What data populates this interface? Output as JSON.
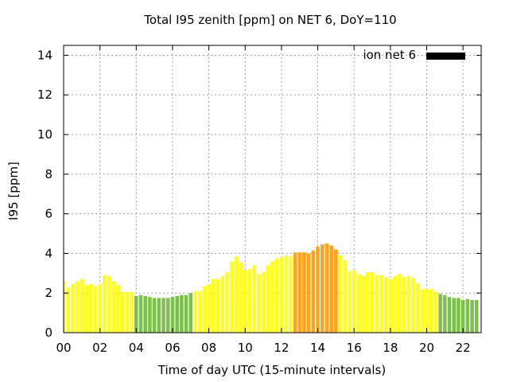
{
  "chart_data": {
    "type": "bar",
    "title": "Total I95 zenith [ppm] on NET 6, DoY=110",
    "xlabel": "Time of day UTC (15-minute intervals)",
    "ylabel": "I95 [ppm]",
    "legend": {
      "label": "ion net 6",
      "color": "#000000",
      "placement": "top-right"
    },
    "x_ticks": [
      "00",
      "02",
      "04",
      "06",
      "08",
      "10",
      "12",
      "14",
      "16",
      "18",
      "20",
      "22"
    ],
    "y_ticks": [
      "0",
      "2",
      "4",
      "6",
      "8",
      "10",
      "12",
      "14"
    ],
    "xlim": [
      0,
      23
    ],
    "ylim": [
      0,
      14.5
    ],
    "grid": true,
    "bar_width_hours": 0.2,
    "colors": {
      "green": "#7cc14a",
      "yellow": "#ffff1a",
      "orange": "#ffa31a"
    },
    "x": [
      0,
      0.25,
      0.5,
      0.75,
      1,
      1.25,
      1.5,
      1.75,
      2,
      2.25,
      2.5,
      2.75,
      3,
      3.25,
      3.5,
      3.75,
      4,
      4.25,
      4.5,
      4.75,
      5,
      5.25,
      5.5,
      5.75,
      6,
      6.25,
      6.5,
      6.75,
      7,
      7.25,
      7.5,
      7.75,
      8,
      8.25,
      8.5,
      8.75,
      9,
      9.25,
      9.5,
      9.75,
      10,
      10.25,
      10.5,
      10.75,
      11,
      11.25,
      11.5,
      11.75,
      12,
      12.25,
      12.5,
      12.75,
      13,
      13.25,
      13.5,
      13.75,
      14,
      14.25,
      14.5,
      14.75,
      15,
      15.25,
      15.5,
      15.75,
      16,
      16.25,
      16.5,
      16.75,
      17,
      17.25,
      17.5,
      17.75,
      18,
      18.25,
      18.5,
      18.75,
      19,
      19.25,
      19.5,
      19.75,
      20,
      20.25,
      20.5,
      20.75,
      21,
      21.25,
      21.5,
      21.75,
      22,
      22.25,
      22.5,
      22.75
    ],
    "values": [
      2.6,
      2.3,
      2.45,
      2.6,
      2.7,
      2.4,
      2.45,
      2.35,
      2.45,
      2.9,
      2.85,
      2.6,
      2.4,
      2.05,
      2.05,
      2.05,
      1.85,
      1.9,
      1.85,
      1.8,
      1.75,
      1.75,
      1.75,
      1.75,
      1.8,
      1.85,
      1.9,
      1.9,
      2.0,
      2.1,
      2.1,
      2.35,
      2.45,
      2.7,
      2.7,
      2.85,
      3.05,
      3.6,
      3.85,
      3.55,
      3.15,
      3.2,
      3.4,
      2.95,
      3.05,
      3.4,
      3.6,
      3.75,
      3.8,
      3.9,
      3.85,
      4.05,
      4.05,
      4.05,
      4.0,
      4.15,
      4.35,
      4.45,
      4.5,
      4.4,
      4.2,
      3.9,
      3.65,
      3.1,
      3.15,
      2.95,
      2.85,
      3.05,
      3.05,
      2.9,
      2.9,
      2.8,
      2.7,
      2.85,
      2.95,
      2.8,
      2.85,
      2.75,
      2.5,
      2.2,
      2.2,
      2.2,
      2.05,
      1.95,
      1.9,
      1.8,
      1.75,
      1.75,
      1.65,
      1.7,
      1.65,
      1.65
    ],
    "bar_colors": [
      "yellow",
      "yellow",
      "yellow",
      "yellow",
      "yellow",
      "yellow",
      "yellow",
      "yellow",
      "yellow",
      "yellow",
      "yellow",
      "yellow",
      "yellow",
      "yellow",
      "yellow",
      "yellow",
      "green",
      "green",
      "green",
      "green",
      "green",
      "green",
      "green",
      "green",
      "green",
      "green",
      "green",
      "green",
      "green",
      "yellow",
      "yellow",
      "yellow",
      "yellow",
      "yellow",
      "yellow",
      "yellow",
      "yellow",
      "yellow",
      "yellow",
      "yellow",
      "yellow",
      "yellow",
      "yellow",
      "yellow",
      "yellow",
      "yellow",
      "yellow",
      "yellow",
      "yellow",
      "yellow",
      "yellow",
      "orange",
      "orange",
      "orange",
      "orange",
      "orange",
      "orange",
      "orange",
      "orange",
      "orange",
      "orange",
      "yellow",
      "yellow",
      "yellow",
      "yellow",
      "yellow",
      "yellow",
      "yellow",
      "yellow",
      "yellow",
      "yellow",
      "yellow",
      "yellow",
      "yellow",
      "yellow",
      "yellow",
      "yellow",
      "yellow",
      "yellow",
      "yellow",
      "yellow",
      "yellow",
      "yellow",
      "green",
      "green",
      "green",
      "green",
      "green",
      "green",
      "green",
      "green",
      "green"
    ]
  }
}
